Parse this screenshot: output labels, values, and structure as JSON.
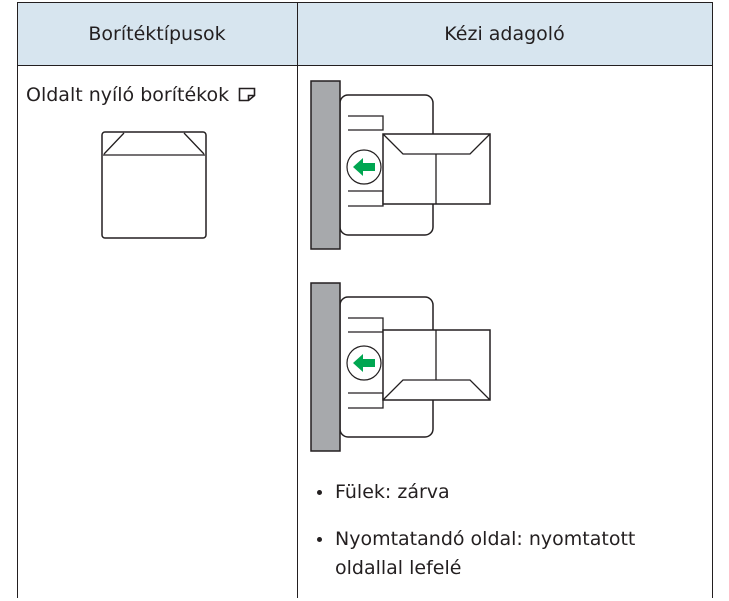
{
  "table": {
    "header": [
      "Borítéktípusok",
      "Kézi adagoló"
    ],
    "rows": [
      [
        "Oldalt nyíló borítékok",
        [
          "Fülek: zárva",
          "Nyomtatandó oldal: nyomtatott oldallal lefelé"
        ]
      ]
    ]
  }
}
